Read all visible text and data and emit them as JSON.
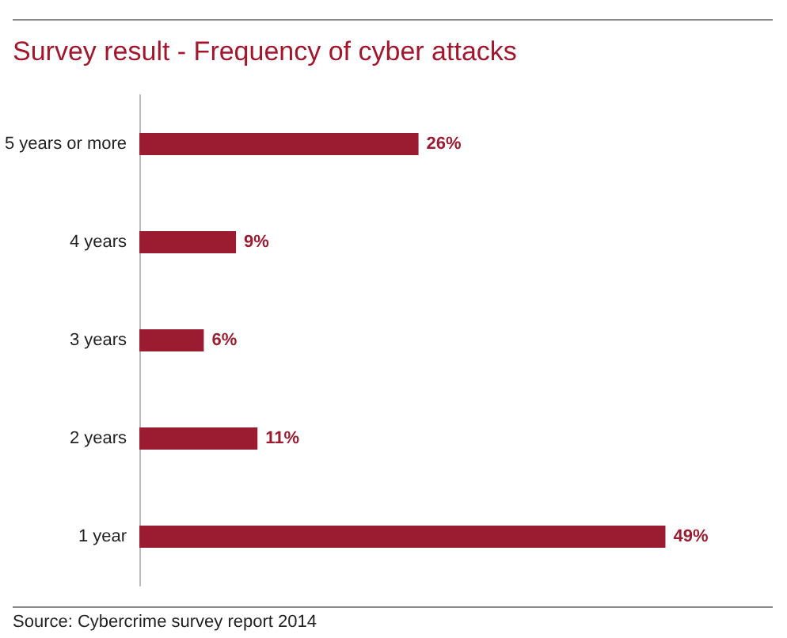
{
  "chart_data": {
    "type": "bar",
    "orientation": "horizontal",
    "title": "Survey result - Frequency of cyber attacks",
    "categories": [
      "5 years or more",
      "4 years",
      "3 years",
      "2 years",
      "1 year"
    ],
    "values": [
      26,
      9,
      6,
      11,
      49
    ],
    "value_labels": [
      "26%",
      "9%",
      "6%",
      "11%",
      "49%"
    ],
    "color": "#9b1c31",
    "annotations": [
      "Source: Cybercrime survey report 2014"
    ]
  }
}
